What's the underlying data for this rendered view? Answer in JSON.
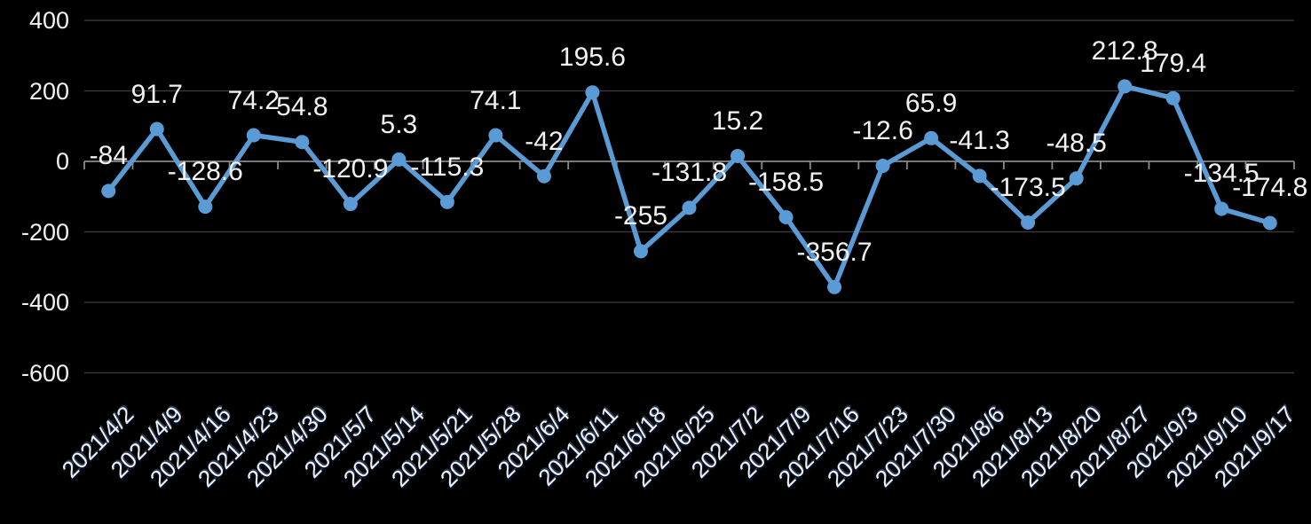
{
  "chart_data": {
    "type": "line",
    "title": "",
    "xlabel": "",
    "ylabel": "",
    "categories": [
      "2021/4/2",
      "2021/4/9",
      "2021/4/16",
      "2021/4/23",
      "2021/4/30",
      "2021/5/7",
      "2021/5/14",
      "2021/5/21",
      "2021/5/28",
      "2021/6/4",
      "2021/6/11",
      "2021/6/18",
      "2021/6/25",
      "2021/7/2",
      "2021/7/9",
      "2021/7/16",
      "2021/7/23",
      "2021/7/30",
      "2021/8/6",
      "2021/8/13",
      "2021/8/20",
      "2021/8/27",
      "2021/9/3",
      "2021/9/10",
      "2021/9/17"
    ],
    "values": [
      -84,
      91.7,
      -128.6,
      74.2,
      54.8,
      -120.9,
      5.3,
      -115.3,
      74.1,
      -42,
      195.6,
      -255,
      -131.8,
      15.2,
      -158.5,
      -356.7,
      -12.6,
      65.9,
      -41.3,
      -173.5,
      -48.5,
      212.8,
      179.4,
      -134.5,
      -174.8
    ],
    "point_labels": [
      "-84",
      "91.7",
      "-128.6",
      "74.2",
      "54.8",
      "-120.9",
      "5.3",
      "-115.3",
      "74.1",
      "-42",
      "195.6",
      "-255",
      "-131.8",
      "15.2",
      "-158.5",
      "-356.7",
      "-12.6",
      "65.9",
      "-41.3",
      "-173.5",
      "-48.5",
      "212.8",
      "179.4",
      "-134.5",
      "-174.8"
    ],
    "yticks": [
      400,
      200,
      0,
      -200,
      -400,
      -600
    ],
    "ylim": [
      -600,
      400
    ],
    "grid": true,
    "legend": "none",
    "x_tick_rotation_deg": 45,
    "data_label_position": "above",
    "style": {
      "background": "#000000",
      "line_color": "#5b9bd5",
      "marker": "circle",
      "text_color": "#f2f2f2",
      "x_label_color": "#eef3fb",
      "grid_color": "#3d3d3d",
      "axis_color": "#8a8a8a"
    }
  }
}
